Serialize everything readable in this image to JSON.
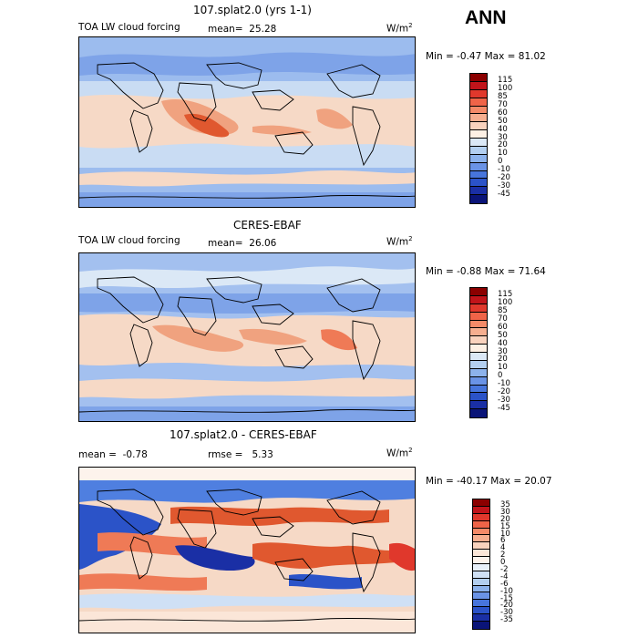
{
  "season": "ANN",
  "units": "W/m",
  "units_sup": "2",
  "panels": [
    {
      "title": "107.splat2.0 (yrs 1-1)",
      "left_label": "TOA LW cloud forcing",
      "stat1": "mean=",
      "stat1_value": "25.28",
      "stat2": "",
      "stat2_value": "",
      "minmax": "Min =  -0.47 Max =  81.02",
      "colorbar_labels": [
        "115",
        "100",
        "85",
        "70",
        "60",
        "50",
        "40",
        "30",
        "20",
        "10",
        "0",
        "-10",
        "-20",
        "-30",
        "-45"
      ],
      "colorbar_colors": [
        "#8b0000",
        "#c1141a",
        "#e0382c",
        "#ef6448",
        "#f48a68",
        "#f6ae8f",
        "#f9d2bd",
        "#fdf0e4",
        "#dbe8f6",
        "#b3cff0",
        "#8cb2ec",
        "#6a93e6",
        "#4775dc",
        "#2b53c8",
        "#1a2fa5",
        "#0a1478"
      ]
    },
    {
      "title": "CERES-EBAF",
      "left_label": "TOA LW cloud forcing",
      "stat1": "mean=",
      "stat1_value": "26.06",
      "stat2": "",
      "stat2_value": "",
      "minmax": "Min =  -0.88 Max =  71.64",
      "colorbar_labels": [
        "115",
        "100",
        "85",
        "70",
        "60",
        "50",
        "40",
        "30",
        "20",
        "10",
        "0",
        "-10",
        "-20",
        "-30",
        "-45"
      ],
      "colorbar_colors": [
        "#8b0000",
        "#c1141a",
        "#e0382c",
        "#ef6448",
        "#f48a68",
        "#f6ae8f",
        "#f9d2bd",
        "#fdf0e4",
        "#dbe8f6",
        "#b3cff0",
        "#8cb2ec",
        "#6a93e6",
        "#4775dc",
        "#2b53c8",
        "#1a2fa5",
        "#0a1478"
      ]
    },
    {
      "title": "107.splat2.0 - CERES-EBAF",
      "left_label": "",
      "stat1": "mean =",
      "stat1_value": "-0.78",
      "stat2": "rmse =",
      "stat2_value": "5.33",
      "minmax": "Min = -40.17 Max =  20.07",
      "colorbar_labels": [
        "35",
        "30",
        "20",
        "15",
        "10",
        "6",
        "4",
        "2",
        "0",
        "-2",
        "-4",
        "-6",
        "-10",
        "-15",
        "-20",
        "-30",
        "-35"
      ],
      "colorbar_colors": [
        "#8b0000",
        "#c1141a",
        "#e0382c",
        "#ef6448",
        "#f48a68",
        "#f6ae8f",
        "#f9d2bd",
        "#fbe6d8",
        "#fdf3ec",
        "#e8f0fa",
        "#cfe0f5",
        "#b3cff0",
        "#8cb2ec",
        "#6a93e6",
        "#4775dc",
        "#2b53c8",
        "#1a2fa5",
        "#0a1478"
      ]
    }
  ]
}
